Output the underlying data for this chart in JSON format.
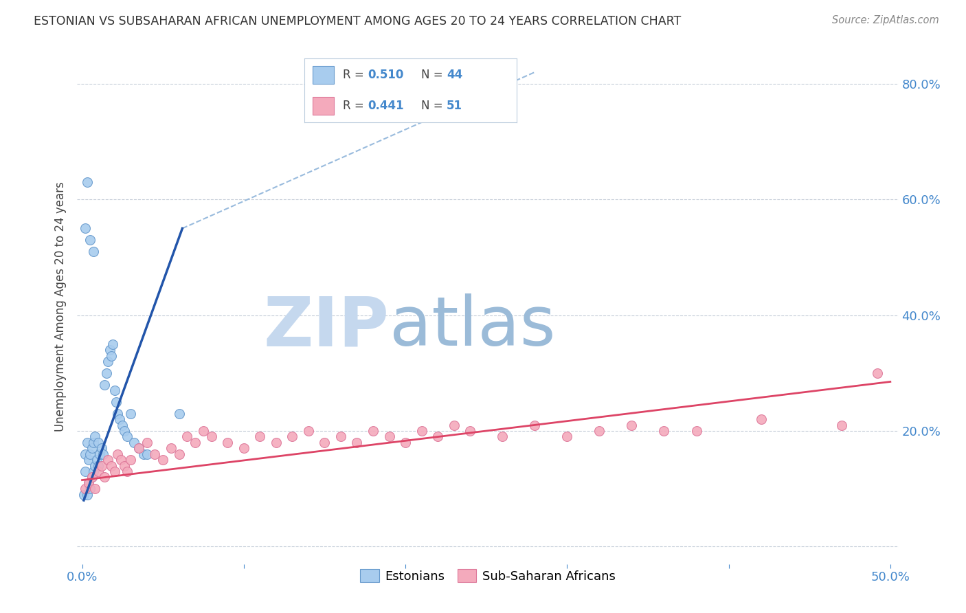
{
  "title": "ESTONIAN VS SUBSAHARAN AFRICAN UNEMPLOYMENT AMONG AGES 20 TO 24 YEARS CORRELATION CHART",
  "source": "Source: ZipAtlas.com",
  "ylabel": "Unemployment Among Ages 20 to 24 years",
  "xlim": [
    -0.003,
    0.505
  ],
  "ylim": [
    -0.03,
    0.86
  ],
  "xticks": [
    0.0,
    0.1,
    0.2,
    0.3,
    0.4,
    0.5
  ],
  "yticks": [
    0.0,
    0.2,
    0.4,
    0.6,
    0.8
  ],
  "blue_R": 0.51,
  "blue_N": 44,
  "pink_R": 0.441,
  "pink_N": 51,
  "blue_label": "Estonians",
  "pink_label": "Sub-Saharan Africans",
  "blue_color": "#A8CCEE",
  "blue_edge_color": "#6699CC",
  "pink_color": "#F4AABC",
  "pink_edge_color": "#DD7799",
  "blue_line_color": "#2255AA",
  "pink_line_color": "#DD4466",
  "diag_line_color": "#99BBDD",
  "axis_color": "#4488CC",
  "title_color": "#333333",
  "watermark_main_color": "#C5D8EE",
  "watermark_atlas_color": "#9BBBD8",
  "background_color": "#FFFFFF",
  "blue_scatter_x": [
    0.001,
    0.002,
    0.002,
    0.003,
    0.003,
    0.004,
    0.004,
    0.005,
    0.005,
    0.006,
    0.006,
    0.007,
    0.007,
    0.008,
    0.008,
    0.009,
    0.01,
    0.01,
    0.011,
    0.012,
    0.013,
    0.014,
    0.015,
    0.016,
    0.017,
    0.018,
    0.019,
    0.02,
    0.021,
    0.022,
    0.023,
    0.025,
    0.026,
    0.028,
    0.03,
    0.032,
    0.035,
    0.038,
    0.04,
    0.002,
    0.003,
    0.005,
    0.007,
    0.06
  ],
  "blue_scatter_y": [
    0.09,
    0.13,
    0.16,
    0.09,
    0.18,
    0.11,
    0.15,
    0.1,
    0.16,
    0.12,
    0.17,
    0.13,
    0.18,
    0.14,
    0.19,
    0.15,
    0.14,
    0.18,
    0.16,
    0.17,
    0.16,
    0.28,
    0.3,
    0.32,
    0.34,
    0.33,
    0.35,
    0.27,
    0.25,
    0.23,
    0.22,
    0.21,
    0.2,
    0.19,
    0.23,
    0.18,
    0.17,
    0.16,
    0.16,
    0.55,
    0.63,
    0.53,
    0.51,
    0.23
  ],
  "pink_scatter_x": [
    0.002,
    0.004,
    0.006,
    0.008,
    0.01,
    0.012,
    0.014,
    0.016,
    0.018,
    0.02,
    0.022,
    0.024,
    0.026,
    0.028,
    0.03,
    0.035,
    0.04,
    0.045,
    0.05,
    0.055,
    0.06,
    0.065,
    0.07,
    0.075,
    0.08,
    0.09,
    0.1,
    0.11,
    0.12,
    0.13,
    0.14,
    0.15,
    0.16,
    0.17,
    0.18,
    0.19,
    0.2,
    0.21,
    0.22,
    0.23,
    0.24,
    0.26,
    0.28,
    0.3,
    0.32,
    0.34,
    0.36,
    0.38,
    0.42,
    0.47,
    0.492
  ],
  "pink_scatter_y": [
    0.1,
    0.11,
    0.12,
    0.1,
    0.13,
    0.14,
    0.12,
    0.15,
    0.14,
    0.13,
    0.16,
    0.15,
    0.14,
    0.13,
    0.15,
    0.17,
    0.18,
    0.16,
    0.15,
    0.17,
    0.16,
    0.19,
    0.18,
    0.2,
    0.19,
    0.18,
    0.17,
    0.19,
    0.18,
    0.19,
    0.2,
    0.18,
    0.19,
    0.18,
    0.2,
    0.19,
    0.18,
    0.2,
    0.19,
    0.21,
    0.2,
    0.19,
    0.21,
    0.19,
    0.2,
    0.21,
    0.2,
    0.2,
    0.22,
    0.21,
    0.3
  ],
  "blue_line_x": [
    0.001,
    0.062
  ],
  "blue_line_y": [
    0.08,
    0.55
  ],
  "diag_line_x": [
    0.062,
    0.28
  ],
  "diag_line_y": [
    0.55,
    0.82
  ],
  "pink_line_x": [
    0.0,
    0.5
  ],
  "pink_line_y": [
    0.115,
    0.285
  ]
}
